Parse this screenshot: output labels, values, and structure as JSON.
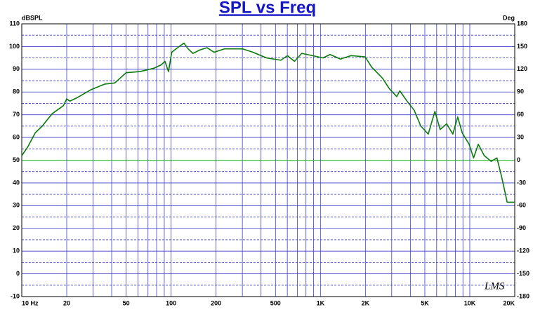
{
  "chart_data": {
    "type": "line",
    "title": "SPL vs Freq",
    "y_label": "dBSPL",
    "y2_label": "Deg",
    "logo": "LMS",
    "xscale": "log",
    "grid": true,
    "grid_color": "#3c3ccf",
    "zero_line_color": "#22b822",
    "xlim": [
      10,
      20000
    ],
    "xticks": [
      {
        "value": 10,
        "label": "10 Hz"
      },
      20,
      50,
      100,
      200,
      500,
      {
        "value": 1000,
        "label": "1K"
      },
      {
        "value": 2000,
        "label": "2K"
      },
      {
        "value": 5000,
        "label": "5K"
      },
      {
        "value": 10000,
        "label": "10K"
      },
      {
        "value": 20000,
        "label": "20K"
      }
    ],
    "xminor": [
      30,
      40,
      60,
      70,
      80,
      90,
      300,
      400,
      600,
      700,
      800,
      900,
      3000,
      4000,
      6000,
      7000,
      8000,
      9000
    ],
    "ylim": [
      -10,
      110
    ],
    "yticks": [
      -10,
      0,
      10,
      20,
      30,
      40,
      50,
      60,
      70,
      80,
      90,
      100,
      110
    ],
    "yminor": [
      -5,
      5,
      15,
      25,
      35,
      45,
      55,
      65,
      75,
      85,
      95,
      105
    ],
    "y2lim": [
      -180,
      180
    ],
    "y2ticks": [
      -180,
      -150,
      -120,
      -90,
      -60,
      -30,
      0,
      30,
      60,
      90,
      120,
      150,
      180
    ],
    "x": [
      10,
      11,
      12.3,
      13.7,
      16,
      19,
      20,
      21,
      23.5,
      29,
      36,
      42,
      50,
      62,
      77,
      86,
      91,
      96,
      101,
      113,
      122,
      130,
      140,
      156,
      174,
      194,
      228,
      300,
      353,
      436,
      543,
      601,
      670,
      750,
      885,
      1040,
      1160,
      1360,
      1600,
      1990,
      2200,
      2610,
      2890,
      3240,
      3400,
      3800,
      4240,
      4700,
      5270,
      5840,
      6330,
      7000,
      7700,
      8300,
      8900,
      9900,
      10600,
      11400,
      12500,
      13900,
      15200,
      16300,
      17800,
      20000
    ],
    "series": [
      {
        "name": "SPL",
        "color": "#0a7a0a",
        "values": [
          52,
          56,
          62,
          65,
          70.5,
          74,
          77,
          76,
          77.5,
          81,
          83.5,
          84,
          88.5,
          89,
          90.5,
          92,
          93.5,
          89,
          97.5,
          100,
          101.5,
          99,
          97,
          98.5,
          99.5,
          97.5,
          99,
          99,
          97.5,
          95,
          94,
          96,
          93.5,
          97,
          96,
          95,
          96.5,
          94.5,
          96,
          95.5,
          91,
          86,
          81.5,
          78,
          80.5,
          76,
          72,
          65,
          61.5,
          71.5,
          63.5,
          66,
          61.5,
          69,
          62,
          57,
          51,
          57,
          52,
          49.5,
          51,
          43,
          31.5,
          31.5
        ]
      }
    ]
  }
}
